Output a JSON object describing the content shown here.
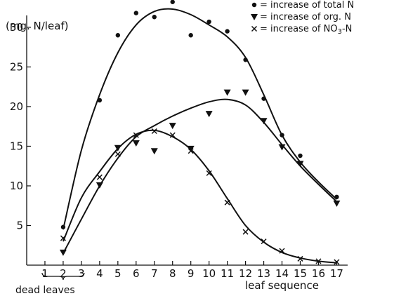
{
  "chart_data": {
    "type": "scatter",
    "title": "",
    "ylabel": "(mg. N/leaf)",
    "xlabel": "leaf sequence",
    "xlim": [
      0,
      17.6
    ],
    "ylim": [
      0,
      31.5
    ],
    "x_ticks": [
      1,
      2,
      3,
      4,
      5,
      6,
      7,
      8,
      9,
      10,
      11,
      12,
      13,
      14,
      15,
      16,
      17
    ],
    "y_ticks": [
      5,
      10,
      15,
      20,
      25,
      30
    ],
    "grid": false,
    "legend_position": "top-right",
    "annotation": "dead leaves",
    "annotation_range": [
      1,
      3
    ],
    "series": [
      {
        "name": "= increase of total N",
        "marker": "circle",
        "points": [
          [
            2,
            4.8
          ],
          [
            4,
            20.8
          ],
          [
            5,
            29.0
          ],
          [
            6,
            31.8
          ],
          [
            7,
            31.3
          ],
          [
            8,
            33.2
          ],
          [
            9,
            29.0
          ],
          [
            10,
            30.7
          ],
          [
            11,
            29.5
          ],
          [
            12,
            25.9
          ],
          [
            13,
            21.0
          ],
          [
            14,
            16.4
          ],
          [
            15,
            13.8
          ],
          [
            17,
            8.6
          ]
        ],
        "curve": [
          [
            2,
            4.5
          ],
          [
            3,
            14.5
          ],
          [
            4,
            21.5
          ],
          [
            5,
            26.8
          ],
          [
            6,
            30.3
          ],
          [
            7,
            32.0
          ],
          [
            8,
            32.3
          ],
          [
            9,
            31.6
          ],
          [
            10,
            30.3
          ],
          [
            11,
            28.8
          ],
          [
            12,
            26.2
          ],
          [
            13,
            21.5
          ],
          [
            14,
            16.4
          ],
          [
            15,
            13.0
          ],
          [
            16,
            10.5
          ],
          [
            17,
            8.3
          ]
        ]
      },
      {
        "name": "= increase of org. N",
        "marker": "triangle-down",
        "points": [
          [
            2,
            1.6
          ],
          [
            4,
            10.1
          ],
          [
            5,
            14.8
          ],
          [
            6,
            15.4
          ],
          [
            7,
            14.4
          ],
          [
            8,
            17.6
          ],
          [
            9,
            14.7
          ],
          [
            10,
            19.1
          ],
          [
            11,
            21.8
          ],
          [
            12,
            21.8
          ],
          [
            13,
            18.2
          ],
          [
            14,
            14.9
          ],
          [
            15,
            12.8
          ],
          [
            17,
            7.8
          ]
        ],
        "curve": [
          [
            2,
            1.5
          ],
          [
            3,
            5.8
          ],
          [
            4,
            10.0
          ],
          [
            5,
            13.5
          ],
          [
            6,
            16.2
          ],
          [
            7,
            17.6
          ],
          [
            8,
            18.8
          ],
          [
            9,
            19.8
          ],
          [
            10,
            20.6
          ],
          [
            11,
            20.9
          ],
          [
            12,
            20.2
          ],
          [
            13,
            18.0
          ],
          [
            14,
            15.2
          ],
          [
            15,
            12.5
          ],
          [
            16,
            10.2
          ],
          [
            17,
            8.0
          ]
        ]
      },
      {
        "name": "= increase of NO3-N",
        "marker": "cross",
        "points": [
          [
            2,
            3.4
          ],
          [
            4,
            11.1
          ],
          [
            5,
            14.0
          ],
          [
            6,
            16.4
          ],
          [
            7,
            16.9
          ],
          [
            8,
            16.4
          ],
          [
            9,
            14.4
          ],
          [
            10,
            11.6
          ],
          [
            11,
            7.9
          ],
          [
            12,
            4.2
          ],
          [
            13,
            3.0
          ],
          [
            14,
            1.8
          ],
          [
            15,
            0.8
          ],
          [
            16,
            0.5
          ],
          [
            17,
            0.4
          ]
        ],
        "curve": [
          [
            2,
            3.0
          ],
          [
            3,
            8.5
          ],
          [
            4,
            11.8
          ],
          [
            5,
            14.7
          ],
          [
            6,
            16.5
          ],
          [
            7,
            17.0
          ],
          [
            8,
            16.2
          ],
          [
            9,
            14.6
          ],
          [
            10,
            11.9
          ],
          [
            11,
            8.4
          ],
          [
            12,
            5.0
          ],
          [
            13,
            2.9
          ],
          [
            14,
            1.6
          ],
          [
            15,
            0.9
          ],
          [
            16,
            0.5
          ],
          [
            17,
            0.3
          ]
        ]
      }
    ]
  }
}
